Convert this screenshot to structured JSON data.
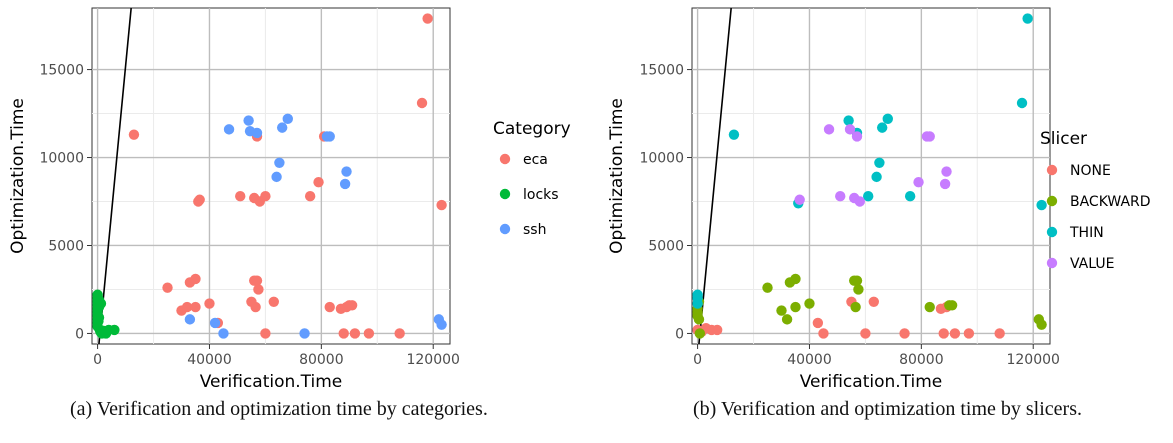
{
  "chart_data": [
    {
      "type": "scatter",
      "title": "",
      "xlabel": "Verification.Time",
      "ylabel": "Optimization.Time",
      "xlim": [
        -2000,
        126000
      ],
      "ylim": [
        -600,
        18500
      ],
      "x_ticks": [
        0,
        40000,
        80000,
        120000
      ],
      "y_ticks": [
        0,
        5000,
        10000,
        15000
      ],
      "grid": true,
      "legend_title": "Category",
      "legend_position": "right",
      "reference_line": {
        "x": [
          0,
          12000
        ],
        "y": [
          -1400,
          18500
        ]
      },
      "series": [
        {
          "name": "eca",
          "color": "#F8766D",
          "points": [
            [
              13000,
              11300
            ],
            [
              118000,
              17900
            ],
            [
              116000,
              13100
            ],
            [
              123000,
              7300
            ],
            [
              36000,
              7500
            ],
            [
              36500,
              7600
            ],
            [
              51000,
              7800
            ],
            [
              56000,
              7700
            ],
            [
              58000,
              7500
            ],
            [
              60000,
              7800
            ],
            [
              76000,
              7800
            ],
            [
              79000,
              8600
            ],
            [
              57000,
              11200
            ],
            [
              81000,
              11200
            ],
            [
              25000,
              2600
            ],
            [
              33000,
              2900
            ],
            [
              35000,
              3100
            ],
            [
              30000,
              1300
            ],
            [
              32000,
              1500
            ],
            [
              35000,
              1500
            ],
            [
              40000,
              1700
            ],
            [
              55000,
              1800
            ],
            [
              56000,
              3000
            ],
            [
              57000,
              3000
            ],
            [
              57500,
              2500
            ],
            [
              56500,
              1500
            ],
            [
              63000,
              1800
            ],
            [
              83000,
              1500
            ],
            [
              87000,
              1400
            ],
            [
              89000,
              1500
            ],
            [
              90000,
              1600
            ],
            [
              91000,
              1600
            ],
            [
              88000,
              0
            ],
            [
              92000,
              0
            ],
            [
              97000,
              0
            ],
            [
              108000,
              0
            ],
            [
              60000,
              0
            ],
            [
              43000,
              600
            ]
          ]
        },
        {
          "name": "locks",
          "color": "#00BA38",
          "points": [
            [
              0,
              2200
            ],
            [
              0,
              2000
            ],
            [
              0,
              1800
            ],
            [
              0,
              1600
            ],
            [
              0,
              1400
            ],
            [
              0,
              1200
            ],
            [
              0,
              1000
            ],
            [
              0,
              800
            ],
            [
              0,
              600
            ],
            [
              0,
              400
            ],
            [
              500,
              1900
            ],
            [
              500,
              1500
            ],
            [
              500,
              900
            ],
            [
              800,
              200
            ],
            [
              1000,
              100
            ],
            [
              1500,
              0
            ],
            [
              2000,
              150
            ],
            [
              3000,
              0
            ],
            [
              4000,
              200
            ],
            [
              6000,
              200
            ],
            [
              1200,
              1700
            ],
            [
              300,
              700
            ]
          ]
        },
        {
          "name": "ssh",
          "color": "#619CFF",
          "points": [
            [
              47000,
              11600
            ],
            [
              54000,
              12100
            ],
            [
              54500,
              11500
            ],
            [
              57000,
              11400
            ],
            [
              66000,
              11700
            ],
            [
              68000,
              12200
            ],
            [
              82000,
              11200
            ],
            [
              83000,
              11200
            ],
            [
              65000,
              9700
            ],
            [
              64000,
              8900
            ],
            [
              89000,
              9200
            ],
            [
              88500,
              8500
            ],
            [
              122000,
              800
            ],
            [
              123000,
              500
            ],
            [
              33000,
              800
            ],
            [
              42000,
              600
            ],
            [
              45000,
              0
            ],
            [
              74000,
              0
            ]
          ]
        }
      ]
    },
    {
      "type": "scatter",
      "title": "",
      "xlabel": "Verification.Time",
      "ylabel": "Optimization.Time",
      "xlim": [
        -2000,
        126000
      ],
      "ylim": [
        -600,
        18500
      ],
      "x_ticks": [
        0,
        40000,
        80000,
        120000
      ],
      "y_ticks": [
        0,
        5000,
        10000,
        15000
      ],
      "grid": true,
      "legend_title": "Slicer",
      "legend_position": "right",
      "reference_line": {
        "x": [
          0,
          12000
        ],
        "y": [
          -1400,
          18500
        ]
      },
      "series": [
        {
          "name": "NONE",
          "color": "#F8766D",
          "points": [
            [
              0,
              200
            ],
            [
              1500,
              100
            ],
            [
              3000,
              300
            ],
            [
              5000,
              200
            ],
            [
              7000,
              200
            ],
            [
              43000,
              600
            ],
            [
              45000,
              0
            ],
            [
              55000,
              1800
            ],
            [
              63000,
              1800
            ],
            [
              60000,
              0
            ],
            [
              74000,
              0
            ],
            [
              88000,
              0
            ],
            [
              92000,
              0
            ],
            [
              97000,
              0
            ],
            [
              108000,
              0
            ],
            [
              87000,
              1400
            ],
            [
              89000,
              1500
            ]
          ]
        },
        {
          "name": "BACKWARD",
          "color": "#7CAE00",
          "points": [
            [
              0,
              1400
            ],
            [
              0,
              1200
            ],
            [
              0,
              1000
            ],
            [
              500,
              1800
            ],
            [
              500,
              800
            ],
            [
              800,
              0
            ],
            [
              25000,
              2600
            ],
            [
              33000,
              2900
            ],
            [
              35000,
              3100
            ],
            [
              30000,
              1300
            ],
            [
              32000,
              800
            ],
            [
              35000,
              1500
            ],
            [
              40000,
              1700
            ],
            [
              56000,
              3000
            ],
            [
              57000,
              3000
            ],
            [
              57500,
              2500
            ],
            [
              56500,
              1500
            ],
            [
              83000,
              1500
            ],
            [
              90000,
              1600
            ],
            [
              91000,
              1600
            ],
            [
              122000,
              800
            ],
            [
              123000,
              500
            ]
          ]
        },
        {
          "name": "THIN",
          "color": "#00BFC4",
          "points": [
            [
              0,
              2200
            ],
            [
              0,
              2000
            ],
            [
              0,
              1700
            ],
            [
              13000,
              11300
            ],
            [
              118000,
              17900
            ],
            [
              116000,
              13100
            ],
            [
              123000,
              7300
            ],
            [
              36000,
              7400
            ],
            [
              54000,
              12100
            ],
            [
              57000,
              11400
            ],
            [
              66000,
              11700
            ],
            [
              68000,
              12200
            ],
            [
              65000,
              9700
            ],
            [
              64000,
              8900
            ],
            [
              61000,
              7800
            ],
            [
              76000,
              7800
            ]
          ]
        },
        {
          "name": "VALUE",
          "color": "#C77CFF",
          "points": [
            [
              47000,
              11600
            ],
            [
              54500,
              11600
            ],
            [
              57000,
              11200
            ],
            [
              82000,
              11200
            ],
            [
              83000,
              11200
            ],
            [
              89000,
              9200
            ],
            [
              88500,
              8500
            ],
            [
              79000,
              8600
            ],
            [
              51000,
              7800
            ],
            [
              56000,
              7700
            ],
            [
              58000,
              7500
            ],
            [
              36500,
              7600
            ]
          ]
        }
      ]
    }
  ],
  "captions": {
    "a": "(a) Verification and optimization time by categories.",
    "b": "(b) Verification and optimization time by slicers."
  }
}
